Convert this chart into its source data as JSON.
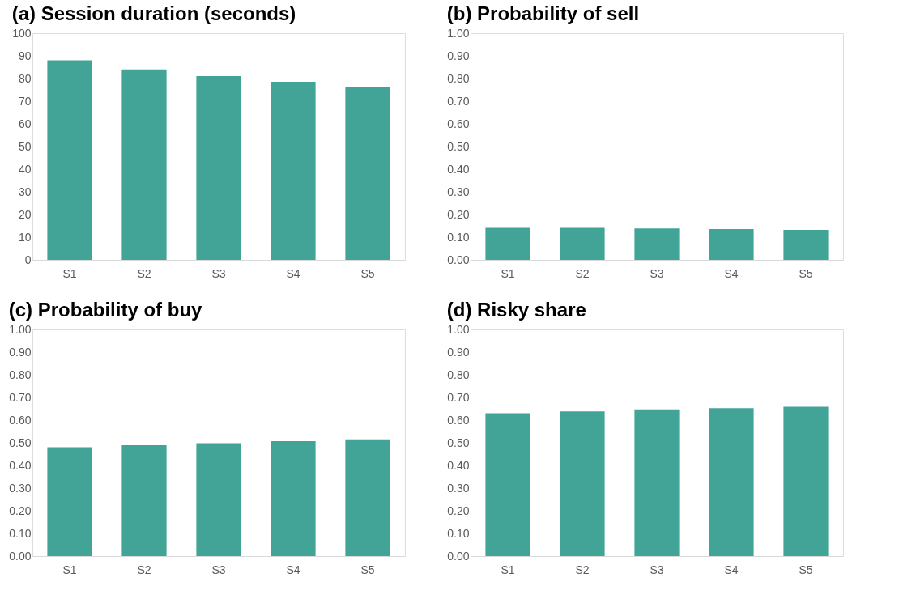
{
  "chart_data": [
    {
      "type": "bar",
      "title": "(a) Session duration (seconds)",
      "categories": [
        "S1",
        "S2",
        "S3",
        "S4",
        "S5"
      ],
      "values": [
        88.0,
        84.0,
        81.1,
        78.6,
        76.2
      ],
      "color": "#41a497",
      "ylim": [
        0,
        100
      ],
      "yticks": [
        0,
        10,
        20,
        30,
        40,
        50,
        60,
        70,
        80,
        90,
        100
      ],
      "grid": false
    },
    {
      "type": "bar",
      "title": "(b) Probability of sell",
      "categories": [
        "S1",
        "S2",
        "S3",
        "S4",
        "S5"
      ],
      "values": [
        0.141,
        0.141,
        0.138,
        0.136,
        0.132
      ],
      "color": "#41a497",
      "ylim": [
        0,
        1
      ],
      "yticks": [
        {
          "value": 0,
          "label": "0.00"
        },
        {
          "value": 0.1,
          "label": "0.10"
        },
        {
          "value": 0.2,
          "label": "0.20"
        },
        {
          "value": 0.3,
          "label": "0.30"
        },
        {
          "value": 0.4,
          "label": "0.40"
        },
        {
          "value": 0.5,
          "label": "0.50"
        },
        {
          "value": 0.6,
          "label": "0.60"
        },
        {
          "value": 0.7,
          "label": "0.70"
        },
        {
          "value": 0.8,
          "label": "0.80"
        },
        {
          "value": 0.9,
          "label": "0.90"
        },
        {
          "value": 1,
          "label": "1.00"
        }
      ],
      "grid": false
    },
    {
      "type": "bar",
      "title": "(c) Probability of buy",
      "categories": [
        "S1",
        "S2",
        "S3",
        "S4",
        "S5"
      ],
      "values": [
        0.48,
        0.489,
        0.498,
        0.507,
        0.515
      ],
      "color": "#41a497",
      "ylim": [
        0,
        1
      ],
      "yticks": [
        {
          "value": 0,
          "label": "0.00"
        },
        {
          "value": 0.1,
          "label": "0.10"
        },
        {
          "value": 0.2,
          "label": "0.20"
        },
        {
          "value": 0.3,
          "label": "0.30"
        },
        {
          "value": 0.4,
          "label": "0.40"
        },
        {
          "value": 0.5,
          "label": "0.50"
        },
        {
          "value": 0.6,
          "label": "0.60"
        },
        {
          "value": 0.7,
          "label": "0.70"
        },
        {
          "value": 0.8,
          "label": "0.80"
        },
        {
          "value": 0.9,
          "label": "0.90"
        },
        {
          "value": 1,
          "label": "1.00"
        }
      ],
      "grid": false
    },
    {
      "type": "bar",
      "title": "(d) Risky share",
      "categories": [
        "S1",
        "S2",
        "S3",
        "S4",
        "S5"
      ],
      "values": [
        0.63,
        0.638,
        0.647,
        0.653,
        0.659
      ],
      "color": "#41a497",
      "ylim": [
        0,
        1
      ],
      "yticks": [
        {
          "value": 0,
          "label": "0.00"
        },
        {
          "value": 0.1,
          "label": "0.10"
        },
        {
          "value": 0.2,
          "label": "0.20"
        },
        {
          "value": 0.3,
          "label": "0.30"
        },
        {
          "value": 0.4,
          "label": "0.40"
        },
        {
          "value": 0.5,
          "label": "0.50"
        },
        {
          "value": 0.6,
          "label": "0.60"
        },
        {
          "value": 0.7,
          "label": "0.70"
        },
        {
          "value": 0.8,
          "label": "0.80"
        },
        {
          "value": 0.9,
          "label": "0.90"
        },
        {
          "value": 1,
          "label": "1.00"
        }
      ],
      "grid": false
    }
  ]
}
